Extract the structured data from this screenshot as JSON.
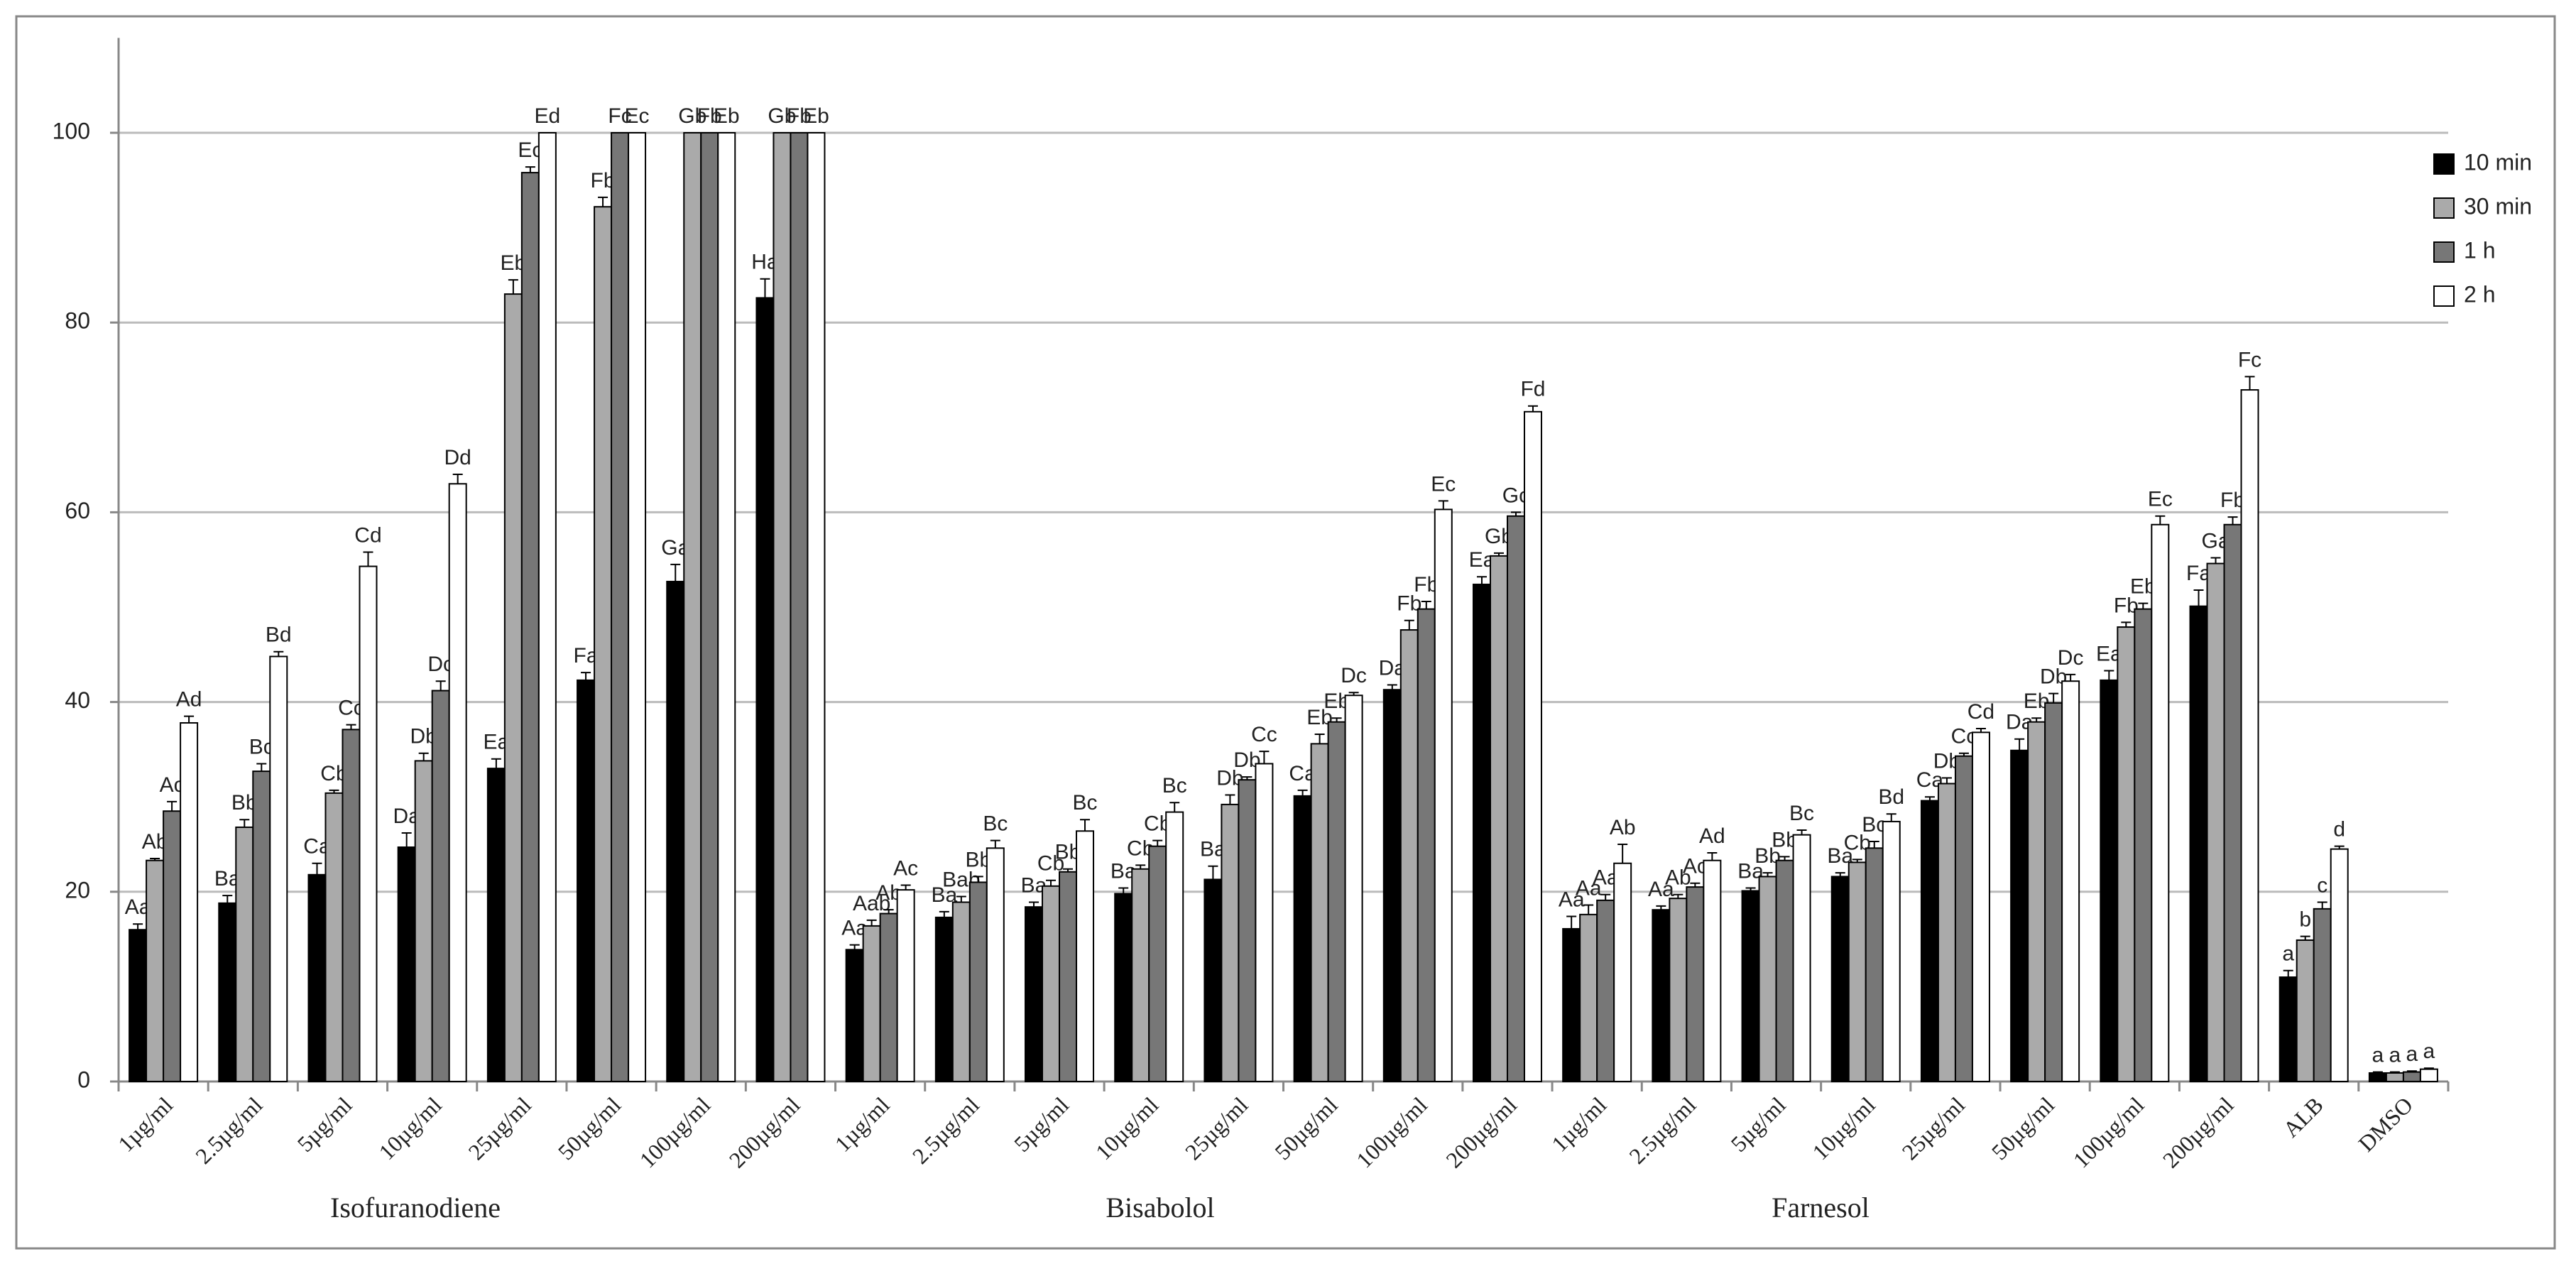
{
  "chart_data": {
    "type": "bar",
    "categories": [
      "1µg/ml",
      "2.5µg/ml",
      "5µg/ml",
      "10µg/ml",
      "25µg/ml",
      "50µg/ml",
      "100µg/ml",
      "200µg/ml",
      "1µg/ml",
      "2.5µg/ml",
      "5µg/ml",
      "10µg/ml",
      "25µg/ml",
      "50µg/ml",
      "100µg/ml",
      "200µg/ml",
      "1µg/ml",
      "2.5µg/ml",
      "5µg/ml",
      "10µg/ml",
      "25µg/ml",
      "50µg/ml",
      "100µg/ml",
      "200µg/ml",
      "ALB",
      "DMSO"
    ],
    "groups": [
      "Isofuranodiene",
      "Bisabolol",
      "Farnesol"
    ],
    "series": [
      {
        "name": "10 min",
        "color": "#000000",
        "values": [
          16,
          18.8,
          21.8,
          24.7,
          33,
          42.3,
          52.7,
          82.6,
          13.9,
          17.3,
          18.4,
          19.8,
          21.3,
          30.1,
          41.3,
          52.4,
          16.1,
          18.1,
          20.1,
          21.6,
          29.6,
          34.9,
          42.3,
          50.1,
          11,
          0.9
        ],
        "errors": [
          0.6,
          0.8,
          1.2,
          1.5,
          1,
          0.8,
          1.8,
          2,
          0.5,
          0.6,
          0.5,
          0.6,
          1.4,
          0.6,
          0.5,
          0.8,
          1.3,
          0.4,
          0.3,
          0.4,
          0.4,
          1.2,
          1,
          1.7,
          0.7,
          0.1
        ],
        "letters": [
          "Aa",
          "Ba",
          "Ca",
          "Da",
          "Ea",
          "Fa",
          "Ga",
          "Ha",
          "Aa",
          "Ba",
          "Ba",
          "Ba",
          "Ba",
          "Ca",
          "Da",
          "Ea",
          "Aa",
          "Aa",
          "Ba",
          "Ba",
          "Ca",
          "Da",
          "Ea",
          "Fa",
          "a",
          "a"
        ]
      },
      {
        "name": "30 min",
        "color": "#aaaaaa",
        "values": [
          23.3,
          26.8,
          30.4,
          33.8,
          83,
          92.2,
          100,
          100,
          16.4,
          18.9,
          20.6,
          22.4,
          29.2,
          35.6,
          47.6,
          55.4,
          17.6,
          19.3,
          21.6,
          23.1,
          31.4,
          37.9,
          47.9,
          54.6,
          14.9,
          0.9
        ],
        "errors": [
          0.2,
          0.8,
          0.3,
          0.8,
          1.5,
          1,
          0,
          0,
          0.6,
          0.6,
          0.6,
          0.4,
          1,
          1,
          1,
          0.3,
          1,
          0.4,
          0.4,
          0.3,
          0.6,
          0.4,
          0.5,
          0.6,
          0.4,
          0.1
        ],
        "letters": [
          "Ab",
          "Bb",
          "Cb",
          "Db",
          "Eb",
          "Fb",
          "Gb",
          "Gb",
          "Aab",
          "Bab",
          "Cb",
          "Cb",
          "Db",
          "Eb",
          "Fb",
          "Gb",
          "Aa",
          "Ab",
          "Bb",
          "Cb",
          "Db",
          "Eb",
          "Fb",
          "Ga",
          "b",
          "a"
        ]
      },
      {
        "name": "1 h",
        "color": "#777777",
        "values": [
          28.5,
          32.7,
          37.1,
          41.2,
          95.8,
          100,
          100,
          100,
          17.7,
          21,
          22.1,
          24.8,
          31.8,
          37.9,
          49.8,
          59.6,
          19.1,
          20.5,
          23.3,
          24.6,
          34.3,
          39.9,
          49.8,
          58.7,
          18.2,
          1
        ],
        "errors": [
          1,
          0.8,
          0.5,
          1,
          0.6,
          0,
          0,
          0,
          0.4,
          0.6,
          0.3,
          0.6,
          0.3,
          0.4,
          0.8,
          0.4,
          0.6,
          0.4,
          0.4,
          0.7,
          0.3,
          1,
          0.6,
          0.8,
          0.7,
          0.1
        ],
        "letters": [
          "Ac",
          "Bc",
          "Cc",
          "Dc",
          "Ec",
          "Fc",
          "Fb",
          "Fb",
          "Ab",
          "Bb",
          "Bb",
          "Cb",
          "Db",
          "Eb",
          "Fb",
          "Gc",
          "Aa",
          "Ac",
          "Bb",
          "Bc",
          "Cc",
          "Db",
          "Eb",
          "Fb",
          "c",
          "a"
        ]
      },
      {
        "name": "2 h",
        "color": "#ffffff",
        "values": [
          37.8,
          44.8,
          54.3,
          63,
          100,
          100,
          100,
          100,
          20.2,
          24.6,
          26.4,
          28.4,
          33.5,
          40.7,
          60.3,
          70.6,
          23,
          23.3,
          26,
          27.4,
          36.8,
          42.2,
          58.7,
          72.9,
          24.5,
          1.3
        ],
        "errors": [
          0.7,
          0.5,
          1.5,
          1,
          0,
          0,
          0,
          0,
          0.5,
          0.8,
          1.2,
          1,
          1.3,
          0.3,
          0.9,
          0.6,
          2,
          0.8,
          0.5,
          0.8,
          0.4,
          0.7,
          0.9,
          1.4,
          0.3,
          0.1
        ],
        "letters": [
          "Ad",
          "Bd",
          "Cd",
          "Dd",
          "Ed",
          "Ec",
          "Eb",
          "Eb",
          "Ac",
          "Bc",
          "Bc",
          "Bc",
          "Cc",
          "Dc",
          "Ec",
          "Fd",
          "Ab",
          "Ad",
          "Bc",
          "Bd",
          "Cd",
          "Dc",
          "Ec",
          "Fc",
          "d",
          "a"
        ]
      }
    ],
    "ylim": [
      0,
      110
    ],
    "yticks": [
      0,
      20,
      40,
      60,
      80,
      100
    ],
    "grid": true,
    "legend": "top-right"
  }
}
